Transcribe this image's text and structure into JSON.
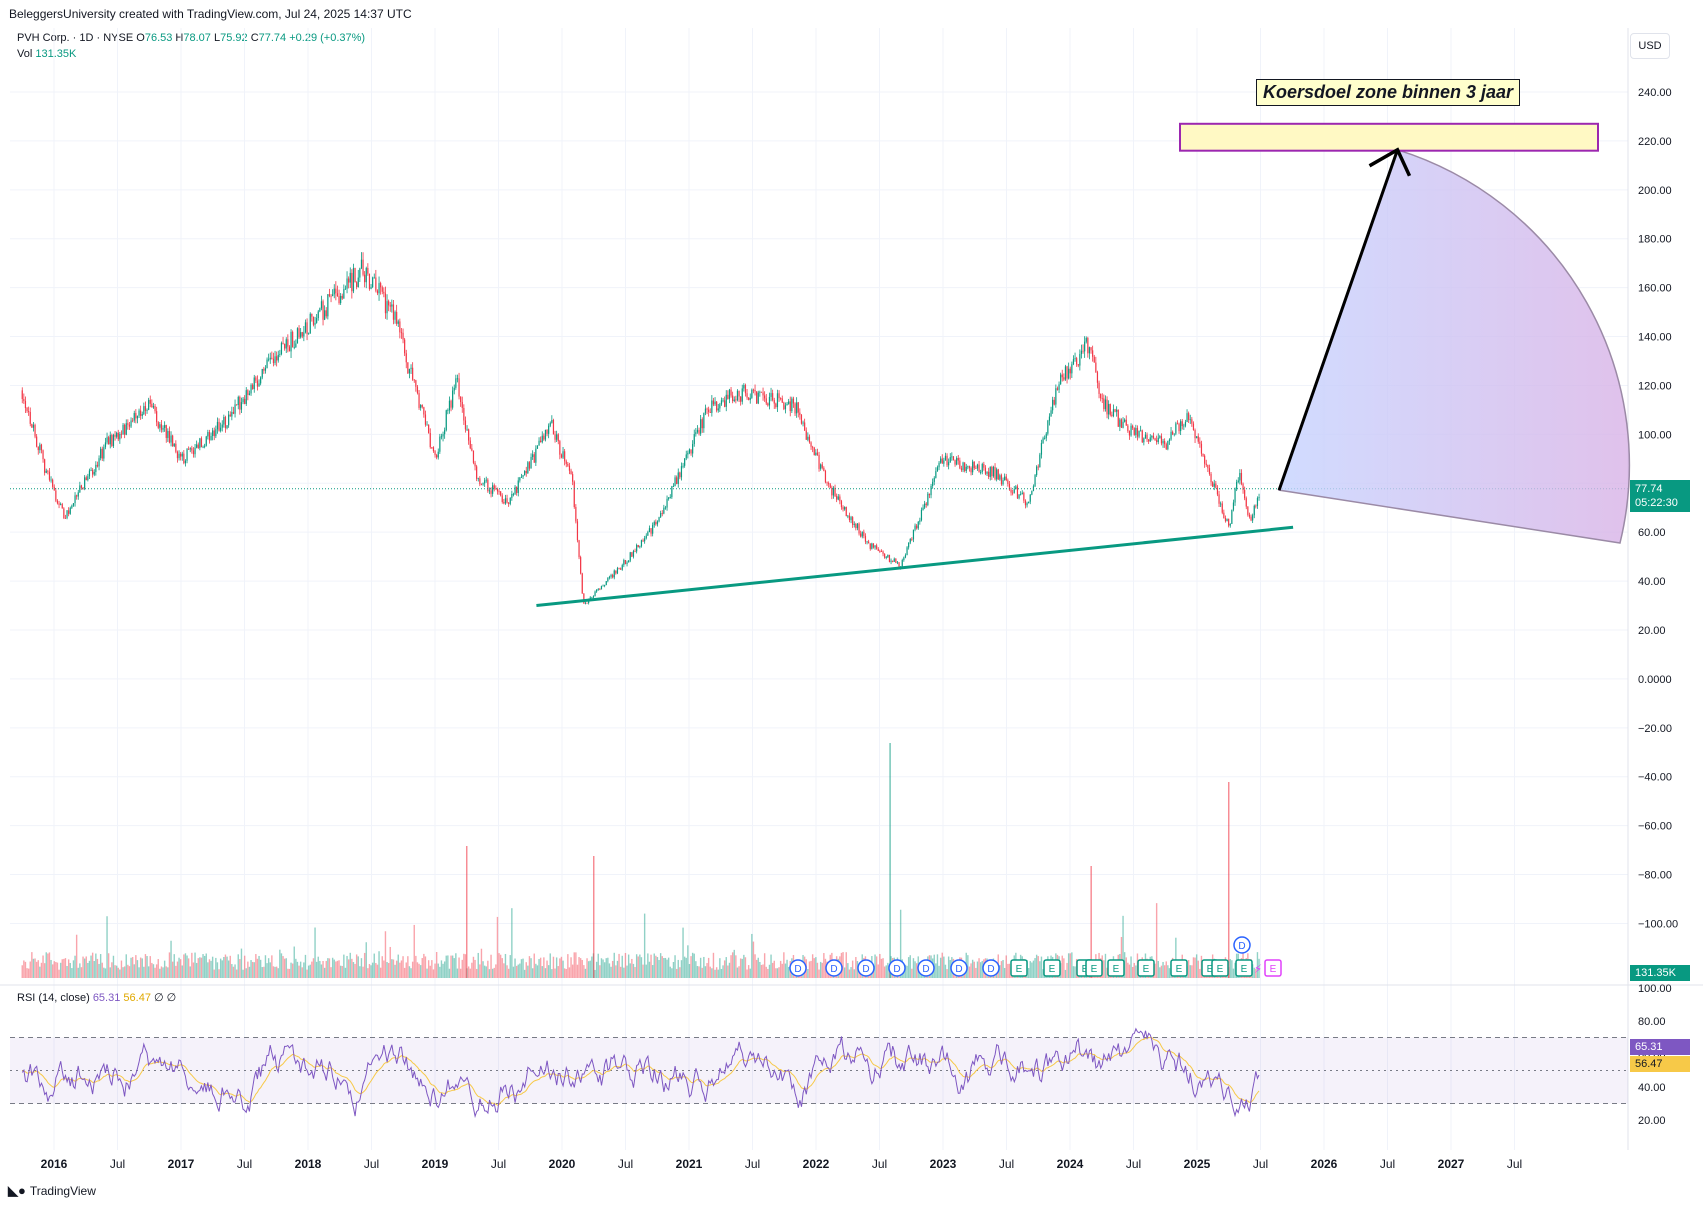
{
  "header": {
    "text": "BeleggersUniversity created with TradingView.com, Jul 24, 2025 14:37 UTC"
  },
  "symbol": {
    "name": "PVH Corp.",
    "interval": "1D",
    "exchange": "NYSE",
    "separator": "·"
  },
  "ohlc": {
    "o_label": "O",
    "o": "76.53",
    "h_label": "H",
    "h": "78.07",
    "l_label": "L",
    "l": "75.92",
    "c_label": "C",
    "c": "77.74",
    "change": "+0.29 (+0.37%)"
  },
  "volume": {
    "label": "Vol",
    "value": "131.35K"
  },
  "currency": "USD",
  "price_tag": {
    "price": "77.74",
    "countdown": "05:22:30"
  },
  "volume_tag": "131.35K",
  "annotation": "Koersdoel zone binnen 3 jaar",
  "rsi": {
    "label": "RSI (14, close)",
    "value": "65.31",
    "ma": "56.47",
    "extra1": "∅",
    "extra2": "∅",
    "ticks": [
      "100.00",
      "80.00",
      "60.00",
      "40.00",
      "20.00"
    ]
  },
  "footer": {
    "brand": "TradingView"
  },
  "colors": {
    "up": "#089981",
    "down": "#f23645",
    "rsi": "#7e57c2",
    "rsi_ma": "#f7c948",
    "target_box": "#fff9c4",
    "target_border": "#9c27b0",
    "trendline": "#089981"
  },
  "chart_data": {
    "type": "candlestick",
    "title": "PVH Corp. · 1D · NYSE",
    "y_axis_ticks": [
      "240.00",
      "220.00",
      "200.00",
      "180.00",
      "160.00",
      "140.00",
      "120.00",
      "100.00",
      "80.00",
      "60.00",
      "40.00",
      "20.00",
      "0.0000",
      "−20.00",
      "−40.00",
      "−60.00",
      "−80.00",
      "−100.00"
    ],
    "x_axis_ticks": [
      "2016",
      "Jul",
      "2017",
      "Jul",
      "2018",
      "Jul",
      "2019",
      "Jul",
      "2020",
      "Jul",
      "2021",
      "Jul",
      "2022",
      "Jul",
      "2023",
      "Jul",
      "2024",
      "Jul",
      "2025",
      "Jul",
      "2026",
      "Jul",
      "2027",
      "Jul"
    ],
    "ylim": [
      -110,
      250
    ],
    "price_path": [
      {
        "date": "2015-10",
        "price": 118
      },
      {
        "date": "2015-12",
        "price": 88
      },
      {
        "date": "2016-02",
        "price": 66
      },
      {
        "date": "2016-06",
        "price": 96
      },
      {
        "date": "2016-10",
        "price": 112
      },
      {
        "date": "2017-01",
        "price": 90
      },
      {
        "date": "2017-05",
        "price": 104
      },
      {
        "date": "2017-09",
        "price": 127
      },
      {
        "date": "2018-01",
        "price": 145
      },
      {
        "date": "2018-06",
        "price": 167
      },
      {
        "date": "2018-09",
        "price": 150
      },
      {
        "date": "2019-01",
        "price": 90
      },
      {
        "date": "2019-03",
        "price": 122
      },
      {
        "date": "2019-05",
        "price": 82
      },
      {
        "date": "2019-08",
        "price": 72
      },
      {
        "date": "2019-12",
        "price": 104
      },
      {
        "date": "2020-02",
        "price": 80
      },
      {
        "date": "2020-03",
        "price": 30
      },
      {
        "date": "2020-07",
        "price": 48
      },
      {
        "date": "2020-10",
        "price": 64
      },
      {
        "date": "2021-03",
        "price": 112
      },
      {
        "date": "2021-06",
        "price": 117
      },
      {
        "date": "2021-11",
        "price": 112
      },
      {
        "date": "2022-02",
        "price": 80
      },
      {
        "date": "2022-06",
        "price": 55
      },
      {
        "date": "2022-09",
        "price": 46
      },
      {
        "date": "2023-01",
        "price": 90
      },
      {
        "date": "2023-06",
        "price": 84
      },
      {
        "date": "2023-09",
        "price": 72
      },
      {
        "date": "2023-12",
        "price": 122
      },
      {
        "date": "2024-03",
        "price": 138
      },
      {
        "date": "2024-04",
        "price": 113
      },
      {
        "date": "2024-07",
        "price": 100
      },
      {
        "date": "2024-10",
        "price": 96
      },
      {
        "date": "2024-12",
        "price": 108
      },
      {
        "date": "2025-04",
        "price": 62
      },
      {
        "date": "2025-05",
        "price": 85
      },
      {
        "date": "2025-06",
        "price": 65
      },
      {
        "date": "2025-07",
        "price": 77.74
      }
    ],
    "support_trendline": [
      {
        "date": "2019-12",
        "price": 30
      },
      {
        "date": "2025-08",
        "price": 62
      }
    ],
    "target_zone": {
      "low": 216,
      "high": 227,
      "label": "Koersdoel zone binnen 3 jaar"
    },
    "projection_arrow": {
      "from": {
        "date": "2025-08",
        "price": 78
      },
      "to": {
        "date": "2026-07",
        "price": 218
      }
    },
    "rsi_levels": [
      70,
      50,
      30
    ],
    "last_price": 77.74,
    "last_volume": "131.35K"
  }
}
